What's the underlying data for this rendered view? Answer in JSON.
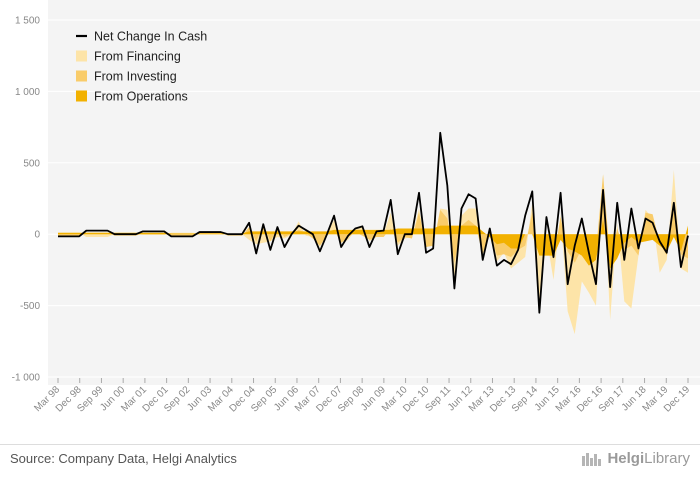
{
  "chart_data": {
    "type": "area",
    "y_ticks": [
      "1 500",
      "1 000",
      "500",
      "0",
      "-500",
      "-1 000"
    ],
    "y_tick_values": [
      1500,
      1000,
      500,
      0,
      -500,
      -1000
    ],
    "ylim": [
      -1000,
      1500
    ],
    "x_tick_labels": [
      "Mar 98",
      "Dec 98",
      "Sep 99",
      "Jun 00",
      "Mar 01",
      "Dec 01",
      "Sep 02",
      "Jun 03",
      "Mar 04",
      "Dec 04",
      "Sep 05",
      "Jun 06",
      "Mar 07",
      "Dec 07",
      "Sep 08",
      "Jun 09",
      "Mar 10",
      "Dec 10",
      "Sep 11",
      "Jun 12",
      "Mar 13",
      "Dec 13",
      "Sep 14",
      "Jun 15",
      "Mar 16",
      "Dec 16",
      "Sep 17",
      "Jun 18",
      "Mar 19",
      "Dec 19"
    ],
    "legend_position": "top-left",
    "colors": {
      "net": "#000000",
      "financing": "#fde4a8",
      "investing": "#f9cc6a",
      "operations": "#f2b100"
    },
    "series": [
      {
        "name": "Net Change In Cash",
        "values": [
          -15,
          -15,
          -15,
          -15,
          25,
          25,
          25,
          25,
          0,
          0,
          0,
          0,
          20,
          20,
          20,
          20,
          -15,
          -15,
          -15,
          -15,
          15,
          15,
          15,
          15,
          0,
          0,
          0,
          80,
          -135,
          70,
          -110,
          50,
          -90,
          0,
          60,
          30,
          0,
          -120,
          0,
          130,
          -90,
          -10,
          40,
          55,
          -90,
          20,
          25,
          240,
          -140,
          0,
          0,
          290,
          -130,
          -100,
          710,
          340,
          -380,
          180,
          280,
          250,
          -180,
          40,
          -220,
          -180,
          -210,
          -110,
          130,
          300,
          -550,
          120,
          -160,
          290,
          -350,
          -80,
          110,
          -130,
          -350,
          310,
          -370,
          220,
          -180,
          180,
          -100,
          110,
          80,
          -50,
          -130,
          220,
          -230,
          -10
        ]
      },
      {
        "name": "From Financing",
        "values": [
          10,
          10,
          10,
          10,
          -20,
          -20,
          -20,
          -20,
          0,
          0,
          0,
          0,
          -5,
          -5,
          -5,
          -5,
          10,
          10,
          10,
          10,
          5,
          5,
          5,
          5,
          0,
          0,
          0,
          -40,
          -70,
          -60,
          -50,
          -20,
          -30,
          -5,
          90,
          -10,
          -20,
          -90,
          0,
          100,
          -60,
          -40,
          30,
          60,
          -50,
          -10,
          0,
          150,
          -80,
          -30,
          -20,
          180,
          -90,
          -80,
          180,
          170,
          -300,
          130,
          180,
          180,
          -110,
          -20,
          -190,
          -130,
          -240,
          -200,
          -160,
          220,
          -480,
          -20,
          -320,
          140,
          -540,
          -700,
          -330,
          -410,
          -500,
          420,
          -600,
          80,
          -470,
          -520,
          -150,
          170,
          110,
          -270,
          -180,
          450,
          -240,
          -270
        ]
      },
      {
        "name": "From Investing",
        "values": [
          -15,
          -15,
          -15,
          -15,
          10,
          10,
          10,
          10,
          -10,
          -10,
          -10,
          -10,
          5,
          5,
          5,
          5,
          -15,
          -15,
          -15,
          -15,
          10,
          10,
          10,
          10,
          -10,
          -10,
          -10,
          50,
          -50,
          70,
          -50,
          40,
          -20,
          5,
          30,
          10,
          -30,
          -80,
          -10,
          30,
          -60,
          -20,
          10,
          -10,
          -40,
          -20,
          -20,
          40,
          -60,
          -20,
          -30,
          150,
          -90,
          -80,
          170,
          110,
          -200,
          60,
          100,
          60,
          -140,
          20,
          -150,
          -140,
          -160,
          -110,
          -80,
          150,
          -140,
          -20,
          -180,
          120,
          -120,
          -200,
          -100,
          -120,
          -120,
          420,
          -170,
          40,
          -110,
          -80,
          -150,
          150,
          140,
          -60,
          -150,
          180,
          -140,
          -170
        ]
      },
      {
        "name": "From Operations",
        "values": [
          10,
          10,
          10,
          10,
          10,
          10,
          10,
          10,
          10,
          10,
          10,
          10,
          10,
          10,
          10,
          10,
          5,
          5,
          5,
          5,
          5,
          5,
          5,
          5,
          5,
          5,
          5,
          20,
          20,
          20,
          20,
          20,
          20,
          20,
          20,
          20,
          20,
          20,
          20,
          30,
          30,
          30,
          30,
          30,
          30,
          30,
          30,
          30,
          40,
          40,
          40,
          40,
          40,
          40,
          60,
          60,
          60,
          60,
          60,
          60,
          20,
          -20,
          -70,
          -60,
          -100,
          -100,
          0,
          0,
          -150,
          -150,
          -150,
          -40,
          -100,
          -120,
          -150,
          -220,
          -180,
          100,
          -240,
          -170,
          -60,
          -20,
          -60,
          -50,
          -40,
          -80,
          -120,
          -20,
          -120,
          60
        ]
      }
    ]
  },
  "legend": [
    {
      "label": "Net Change In Cash"
    },
    {
      "label": "From Financing"
    },
    {
      "label": "From Investing"
    },
    {
      "label": "From Operations"
    }
  ],
  "footer": {
    "source": "Source: Company Data, Helgi Analytics",
    "brand_strong": "Helgi",
    "brand_light": "Library"
  }
}
